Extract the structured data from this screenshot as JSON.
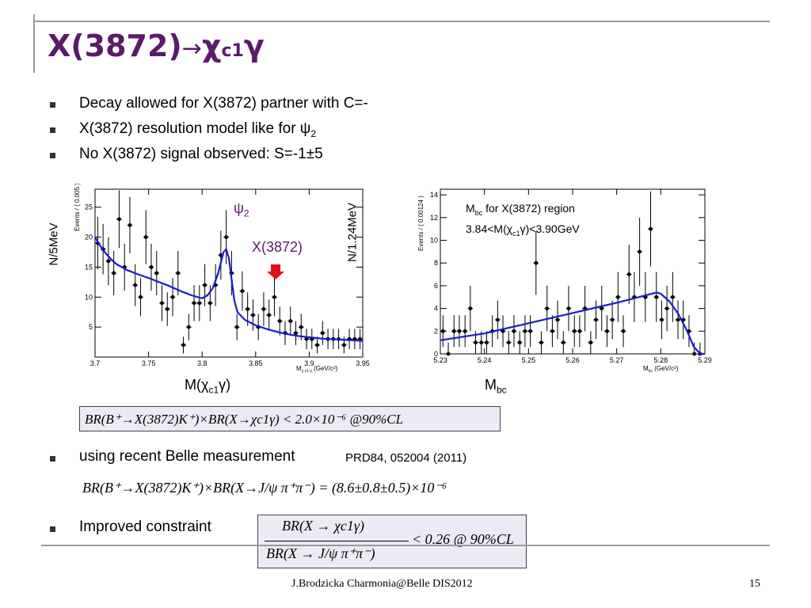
{
  "slide": {
    "title_main": "X(3872)",
    "title_arrow": "→",
    "title_chi": "χ",
    "title_sub": "c1",
    "title_gamma": "γ",
    "accent_color": "#5b1a6b"
  },
  "bullets": [
    {
      "text": "Decay allowed for X(3872) partner with C=-"
    },
    {
      "text": "X(3872) resolution model like for ψ",
      "sub": "2"
    },
    {
      "text": "No X(3872) signal observed: S=-1±5"
    }
  ],
  "left_plot": {
    "ylabel_outer": "N/5MeV",
    "ylabel_inner": "Events / ( 0.005 )",
    "xlabel_main": "M(χc1γ)",
    "xlabel_main_parts": {
      "a": "M(χ",
      "sub": "c1",
      "b": "γ)"
    },
    "xlabel_inner": "M",
    "xlabel_inner_unit": "(GeV/c²)",
    "label_psi": "ψ",
    "label_psi_sub": "2",
    "label_x": "X(3872)",
    "arrow_color": "#e0101a"
  },
  "right_plot": {
    "ylabel_outer": "N/1.24MeV",
    "ylabel_inner": "Events / ( 0.00124 )",
    "xlabel_main": "M",
    "xlabel_main_sub": "bc",
    "xlabel_inner": "M",
    "xlabel_inner_sub": "bc",
    "xlabel_inner_unit": "(GeV/c²)",
    "note_line1_a": "M",
    "note_line1_sub": "bc",
    "note_line1_b": " for X(3872) region",
    "note_line2_a": "3.84<M(χ",
    "note_line2_sub": "c1",
    "note_line2_b": "γ)<3.90GeV"
  },
  "chart_data": [
    {
      "type": "scatter",
      "name": "left",
      "xlim": [
        3.7,
        3.95
      ],
      "ylim": [
        0,
        28
      ],
      "xticks": [
        "3.7",
        "3.75",
        "3.8",
        "3.85",
        "3.9",
        "3.95"
      ],
      "yticks": [
        "5",
        "10",
        "15",
        "20",
        "25"
      ],
      "points": [
        {
          "x": 3.7025,
          "y": 19,
          "e": 4.4
        },
        {
          "x": 3.7075,
          "y": 18,
          "e": 4.2
        },
        {
          "x": 3.7125,
          "y": 16,
          "e": 4.0
        },
        {
          "x": 3.7175,
          "y": 14,
          "e": 3.7
        },
        {
          "x": 3.7225,
          "y": 23,
          "e": 4.8
        },
        {
          "x": 3.7275,
          "y": 15,
          "e": 3.9
        },
        {
          "x": 3.7325,
          "y": 22,
          "e": 4.7
        },
        {
          "x": 3.7375,
          "y": 12,
          "e": 3.5
        },
        {
          "x": 3.7425,
          "y": 10,
          "e": 3.2
        },
        {
          "x": 3.7475,
          "y": 20,
          "e": 4.5
        },
        {
          "x": 3.7525,
          "y": 15,
          "e": 3.9
        },
        {
          "x": 3.7575,
          "y": 14,
          "e": 3.7
        },
        {
          "x": 3.7625,
          "y": 9,
          "e": 3.0
        },
        {
          "x": 3.7675,
          "y": 8,
          "e": 2.8
        },
        {
          "x": 3.7725,
          "y": 10,
          "e": 3.2
        },
        {
          "x": 3.7775,
          "y": 14,
          "e": 3.7
        },
        {
          "x": 3.7825,
          "y": 2,
          "e": 1.4
        },
        {
          "x": 3.7875,
          "y": 5,
          "e": 2.2
        },
        {
          "x": 3.7925,
          "y": 9,
          "e": 3.0
        },
        {
          "x": 3.7975,
          "y": 9,
          "e": 3.0
        },
        {
          "x": 3.8025,
          "y": 12,
          "e": 3.5
        },
        {
          "x": 3.8075,
          "y": 9,
          "e": 3.0
        },
        {
          "x": 3.8125,
          "y": 12,
          "e": 3.5
        },
        {
          "x": 3.8175,
          "y": 17,
          "e": 4.1
        },
        {
          "x": 3.8225,
          "y": 20,
          "e": 4.5
        },
        {
          "x": 3.8275,
          "y": 14,
          "e": 3.7
        },
        {
          "x": 3.8325,
          "y": 5,
          "e": 2.2
        },
        {
          "x": 3.8375,
          "y": 11,
          "e": 3.3
        },
        {
          "x": 3.8425,
          "y": 8,
          "e": 2.8
        },
        {
          "x": 3.8475,
          "y": 7,
          "e": 2.6
        },
        {
          "x": 3.8525,
          "y": 5,
          "e": 2.2
        },
        {
          "x": 3.8575,
          "y": 8,
          "e": 2.8
        },
        {
          "x": 3.8625,
          "y": 7,
          "e": 2.6
        },
        {
          "x": 3.8675,
          "y": 10,
          "e": 3.2
        },
        {
          "x": 3.8725,
          "y": 6,
          "e": 2.4
        },
        {
          "x": 3.8775,
          "y": 4,
          "e": 2.0
        },
        {
          "x": 3.8825,
          "y": 6,
          "e": 2.4
        },
        {
          "x": 3.8875,
          "y": 4,
          "e": 2.0
        },
        {
          "x": 3.8925,
          "y": 5,
          "e": 2.2
        },
        {
          "x": 3.8975,
          "y": 3,
          "e": 1.7
        },
        {
          "x": 3.9025,
          "y": 3,
          "e": 1.7
        },
        {
          "x": 3.9075,
          "y": 2,
          "e": 1.4
        },
        {
          "x": 3.9125,
          "y": 4,
          "e": 2.0
        },
        {
          "x": 3.9175,
          "y": 3,
          "e": 1.7
        },
        {
          "x": 3.9225,
          "y": 3,
          "e": 1.7
        },
        {
          "x": 3.9275,
          "y": 3,
          "e": 1.7
        },
        {
          "x": 3.9325,
          "y": 2,
          "e": 1.4
        },
        {
          "x": 3.9375,
          "y": 3,
          "e": 1.7
        },
        {
          "x": 3.9425,
          "y": 3,
          "e": 1.7
        },
        {
          "x": 3.9475,
          "y": 3,
          "e": 1.7
        }
      ],
      "fit": [
        [
          3.7,
          20
        ],
        [
          3.705,
          18.5
        ],
        [
          3.71,
          17.3
        ],
        [
          3.715,
          16.3
        ],
        [
          3.72,
          15.5
        ],
        [
          3.73,
          14.5
        ],
        [
          3.74,
          13.8
        ],
        [
          3.75,
          13.2
        ],
        [
          3.76,
          12.5
        ],
        [
          3.77,
          11.8
        ],
        [
          3.78,
          11.0
        ],
        [
          3.79,
          10.3
        ],
        [
          3.8,
          9.8
        ],
        [
          3.805,
          10.3
        ],
        [
          3.81,
          11.5
        ],
        [
          3.815,
          14.0
        ],
        [
          3.82,
          17.5
        ],
        [
          3.8225,
          18.0
        ],
        [
          3.825,
          16.5
        ],
        [
          3.8275,
          13.0
        ],
        [
          3.83,
          9.5
        ],
        [
          3.833,
          7.5
        ],
        [
          3.84,
          6.2
        ],
        [
          3.85,
          5.3
        ],
        [
          3.86,
          4.7
        ],
        [
          3.87,
          4.2
        ],
        [
          3.88,
          3.8
        ],
        [
          3.89,
          3.5
        ],
        [
          3.9,
          3.3
        ],
        [
          3.91,
          3.1
        ],
        [
          3.92,
          3.0
        ],
        [
          3.93,
          2.9
        ],
        [
          3.94,
          2.8
        ],
        [
          3.95,
          2.7
        ]
      ]
    },
    {
      "type": "scatter",
      "name": "right",
      "xlim": [
        5.23,
        5.29
      ],
      "ylim": [
        0,
        14.5
      ],
      "xticks": [
        "5.23",
        "5.24",
        "5.25",
        "5.26",
        "5.27",
        "5.28",
        "5.29"
      ],
      "yticks": [
        "0",
        "2",
        "4",
        "6",
        "8",
        "10",
        "12",
        "14"
      ],
      "points": [
        {
          "x": 5.2306,
          "y": 2,
          "e": 1.4
        },
        {
          "x": 5.2318,
          "y": 0,
          "e": 1.0
        },
        {
          "x": 5.2331,
          "y": 2,
          "e": 1.4
        },
        {
          "x": 5.2343,
          "y": 2,
          "e": 1.4
        },
        {
          "x": 5.2356,
          "y": 2,
          "e": 1.4
        },
        {
          "x": 5.2368,
          "y": 4,
          "e": 2.0
        },
        {
          "x": 5.238,
          "y": 1,
          "e": 1.0
        },
        {
          "x": 5.2393,
          "y": 1,
          "e": 1.0
        },
        {
          "x": 5.2405,
          "y": 1,
          "e": 1.0
        },
        {
          "x": 5.2418,
          "y": 2,
          "e": 1.4
        },
        {
          "x": 5.243,
          "y": 3,
          "e": 1.7
        },
        {
          "x": 5.2442,
          "y": 2,
          "e": 1.4
        },
        {
          "x": 5.2455,
          "y": 1,
          "e": 1.0
        },
        {
          "x": 5.2467,
          "y": 2,
          "e": 1.4
        },
        {
          "x": 5.248,
          "y": 1,
          "e": 1.0
        },
        {
          "x": 5.2492,
          "y": 2,
          "e": 1.4
        },
        {
          "x": 5.2504,
          "y": 2,
          "e": 1.4
        },
        {
          "x": 5.2517,
          "y": 8,
          "e": 2.8
        },
        {
          "x": 5.2529,
          "y": 1,
          "e": 1.0
        },
        {
          "x": 5.2542,
          "y": 4,
          "e": 2.0
        },
        {
          "x": 5.2554,
          "y": 2,
          "e": 1.4
        },
        {
          "x": 5.2566,
          "y": 3,
          "e": 1.7
        },
        {
          "x": 5.2579,
          "y": 1,
          "e": 1.0
        },
        {
          "x": 5.2591,
          "y": 4,
          "e": 2.0
        },
        {
          "x": 5.2604,
          "y": 2,
          "e": 1.4
        },
        {
          "x": 5.2616,
          "y": 2,
          "e": 1.4
        },
        {
          "x": 5.2628,
          "y": 4,
          "e": 2.0
        },
        {
          "x": 5.2641,
          "y": 1,
          "e": 1.0
        },
        {
          "x": 5.2653,
          "y": 3,
          "e": 1.7
        },
        {
          "x": 5.2666,
          "y": 4,
          "e": 2.0
        },
        {
          "x": 5.2678,
          "y": 2,
          "e": 1.4
        },
        {
          "x": 5.269,
          "y": 3,
          "e": 1.7
        },
        {
          "x": 5.2703,
          "y": 5,
          "e": 2.2
        },
        {
          "x": 5.2715,
          "y": 2,
          "e": 1.4
        },
        {
          "x": 5.2728,
          "y": 7,
          "e": 2.6
        },
        {
          "x": 5.274,
          "y": 5,
          "e": 2.2
        },
        {
          "x": 5.2752,
          "y": 9,
          "e": 3.0
        },
        {
          "x": 5.2765,
          "y": 5,
          "e": 2.2
        },
        {
          "x": 5.2777,
          "y": 11,
          "e": 3.3
        },
        {
          "x": 5.279,
          "y": 5,
          "e": 2.2
        },
        {
          "x": 5.2802,
          "y": 3,
          "e": 1.7
        },
        {
          "x": 5.2814,
          "y": 4,
          "e": 2.0
        },
        {
          "x": 5.2827,
          "y": 5,
          "e": 2.2
        },
        {
          "x": 5.2839,
          "y": 3,
          "e": 1.7
        },
        {
          "x": 5.2851,
          "y": 3,
          "e": 1.7
        },
        {
          "x": 5.2864,
          "y": 2,
          "e": 1.4
        },
        {
          "x": 5.2876,
          "y": 0,
          "e": 1.0
        },
        {
          "x": 5.2889,
          "y": 0,
          "e": 1.0
        }
      ],
      "fit": [
        [
          5.23,
          1.2
        ],
        [
          5.24,
          1.8
        ],
        [
          5.25,
          2.7
        ],
        [
          5.26,
          3.6
        ],
        [
          5.27,
          4.5
        ],
        [
          5.275,
          5.0
        ],
        [
          5.279,
          5.4
        ],
        [
          5.28,
          5.3
        ],
        [
          5.282,
          4.6
        ],
        [
          5.284,
          3.5
        ],
        [
          5.286,
          2.0
        ],
        [
          5.2875,
          0.6
        ],
        [
          5.289,
          0.0
        ],
        [
          5.29,
          0.0
        ]
      ]
    }
  ],
  "recent_bullet": {
    "text": "using recent Belle measurement",
    "ref": "PRD84, 052004 (2011)"
  },
  "improved_bullet": {
    "text": "Improved constraint"
  },
  "formulas": {
    "f1": "BR(B⁺→X(3872)K⁺)×BR(X→χc1γ) < 2.0×10⁻⁶ @90%CL",
    "f2": "BR(B⁺→X(3872)K⁺)×BR(X→J/ψ π⁺π⁻) = (8.6±0.8±0.5)×10⁻⁶",
    "f3_num": "BR(X → χc1γ)",
    "f3_den": "BR(X → J/ψ π⁺π⁻)",
    "f3_rhs": "< 0.26 @ 90%CL"
  },
  "footer": {
    "text": "J.Brodzicka  Charmonia@Belle  DIS2012",
    "page": "15"
  }
}
